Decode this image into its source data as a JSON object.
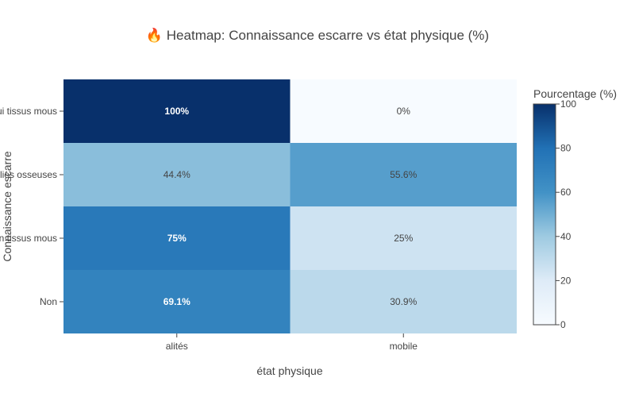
{
  "chart_data": {
    "type": "heatmap",
    "title": "🔥 Heatmap: Connaissance escarre vs état physique  (%)",
    "xlabel": "état physique",
    "ylabel": "Connaissance escarre",
    "x_categories": [
      "alités",
      "mobile"
    ],
    "y_categories": [
      "Oui tissus mous",
      "Oui saillies osseuses",
      "Non tissus mous",
      "Non"
    ],
    "values": [
      [
        100,
        0
      ],
      [
        44.4,
        55.6
      ],
      [
        75,
        25
      ],
      [
        69.1,
        30.9
      ]
    ],
    "cell_labels": [
      [
        "100%",
        "0%"
      ],
      [
        "44.4%",
        "55.6%"
      ],
      [
        "75%",
        "25%"
      ],
      [
        "69.1%",
        "30.9%"
      ]
    ],
    "colorscale": "Blues",
    "colorbar": {
      "title": "Pourcentage (%)",
      "range": [
        0,
        100
      ],
      "ticks": [
        "0",
        "20",
        "40",
        "60",
        "80",
        "100"
      ]
    }
  }
}
